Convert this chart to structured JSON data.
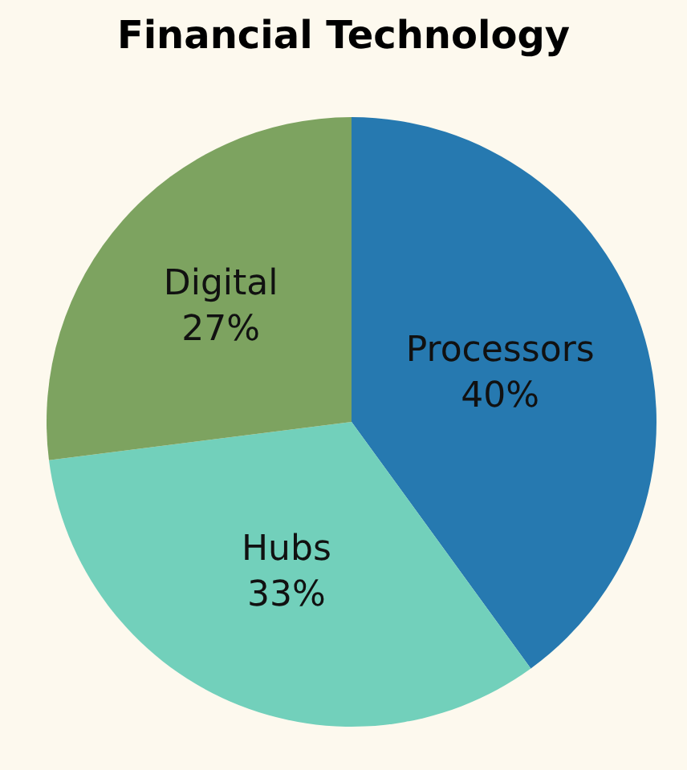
{
  "chart_data": {
    "type": "pie",
    "title": "Financial Technology",
    "categories": [
      "Processors",
      "Hubs",
      "Digital"
    ],
    "values": [
      40,
      33,
      27
    ],
    "value_labels": [
      "40%",
      "33%",
      "27%"
    ],
    "colors": [
      "#2679b0",
      "#72d0bb",
      "#7da360"
    ],
    "legend": false
  }
}
